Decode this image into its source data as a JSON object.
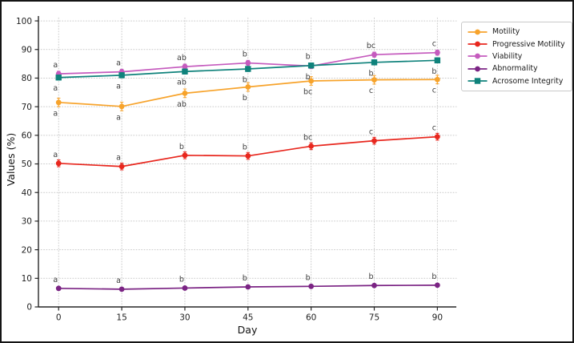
{
  "figure": {
    "background": "#ffffff",
    "border_color": "#141414",
    "grid_color": "#c9c9c9",
    "axis_color": "#262626",
    "tick_label_color": "#1f1f1f",
    "annotation_color": "#3d3d3d"
  },
  "chart_data": {
    "type": "line",
    "title": "",
    "xlabel": "Day",
    "ylabel": "Values (%)",
    "x": [
      0,
      15,
      30,
      45,
      60,
      75,
      90
    ],
    "xlim": [
      -4.8,
      94.5
    ],
    "ylim": [
      0,
      101.7
    ],
    "yticks": [
      0,
      10,
      20,
      30,
      40,
      50,
      60,
      70,
      80,
      90,
      100
    ],
    "grid": "dotted both axes",
    "legend_position": "outside upper right",
    "series": [
      {
        "name": "Motility",
        "color": "#F7A32B",
        "marker": "circle",
        "err": 1.5,
        "values": [
          71.5,
          70.1,
          74.7,
          76.9,
          79.0,
          79.4,
          79.5
        ],
        "point_labels": [
          "a",
          "a",
          "ab",
          "b",
          "bc",
          "c",
          "c"
        ],
        "label_side": [
          "below",
          "below",
          "below",
          "below",
          "below",
          "below",
          "below"
        ]
      },
      {
        "name": "Progressive Motility",
        "color": "#E8271E",
        "marker": "circle",
        "err": 1.2,
        "values": [
          50.2,
          49.1,
          53.0,
          52.8,
          56.2,
          58.1,
          59.5
        ],
        "point_labels": [
          "a",
          "a",
          "b",
          "b",
          "bc",
          "c",
          "c"
        ],
        "label_side": [
          "above",
          "above",
          "above",
          "above",
          "above",
          "above",
          "above"
        ]
      },
      {
        "name": "Viability",
        "color": "#C55BBE",
        "marker": "circle",
        "err": 0.9,
        "values": [
          81.5,
          82.2,
          84.0,
          85.3,
          84.2,
          88.2,
          88.9
        ],
        "point_labels": [
          "a",
          "a",
          "ab",
          "b",
          "b",
          "bc",
          "c"
        ],
        "label_side": [
          "above",
          "above",
          "above",
          "above",
          "below",
          "above",
          "above"
        ]
      },
      {
        "name": "Abnormality",
        "color": "#7B2484",
        "marker": "circle",
        "err": 0.5,
        "values": [
          6.5,
          6.2,
          6.6,
          7.0,
          7.2,
          7.5,
          7.6
        ],
        "point_labels": [
          "a",
          "a",
          "b",
          "b",
          "b",
          "b",
          "b"
        ],
        "label_side": [
          "above",
          "above",
          "above",
          "above",
          "above",
          "above",
          "above"
        ]
      },
      {
        "name": "Acrosome Integrity",
        "color": "#0F827B",
        "marker": "square",
        "err": 0.9,
        "values": [
          80.2,
          81.0,
          82.3,
          83.2,
          84.4,
          85.5,
          86.2
        ],
        "point_labels": [
          "a",
          "a",
          "ab",
          "b",
          "b",
          "b",
          "b"
        ],
        "label_side": [
          "below",
          "below",
          "below",
          "below",
          "above",
          "below",
          "below"
        ]
      }
    ]
  }
}
